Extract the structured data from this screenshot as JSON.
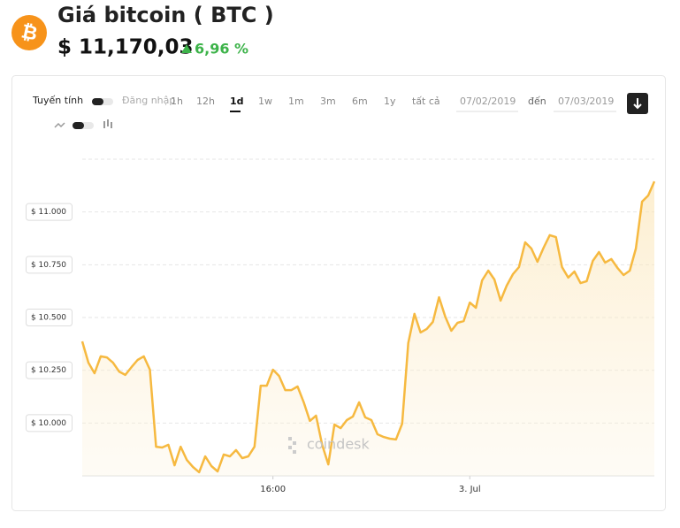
{
  "header": {
    "title": "Giá bitcoin ( BTC )",
    "price": "$ 11,170,03",
    "change": "6,96 %"
  },
  "controls": {
    "scale": "Tuyến tính",
    "login": "Đăng nhập",
    "ranges": [
      "1h",
      "12h",
      "1d",
      "1w",
      "1m",
      "3m",
      "6m",
      "1y",
      "tất cả"
    ],
    "selected": "1d",
    "from": "07/02/2019",
    "to_label": "đến",
    "to": "07/03/2019"
  },
  "watermark": "coindesk",
  "chart_data": {
    "type": "area",
    "color": "#f6b940",
    "x": [
      8.25,
      8.5,
      8.75,
      9,
      9.25,
      9.5,
      9.75,
      10,
      10.25,
      10.5,
      10.75,
      11,
      11.25,
      11.5,
      11.75,
      12,
      12.25,
      12.5,
      12.75,
      13,
      13.25,
      13.5,
      13.75,
      14,
      14.25,
      14.5,
      14.75,
      15,
      15.25,
      15.5,
      15.75,
      16,
      16.25,
      16.5,
      16.75,
      17,
      17.25,
      17.5,
      17.75,
      18,
      18.25,
      18.5,
      18.75,
      19,
      19.25,
      19.5,
      19.75,
      20,
      20.25,
      20.5,
      20.75,
      21,
      21.25,
      21.5,
      21.75,
      22,
      22.25,
      22.5,
      22.75,
      23,
      23.25,
      23.5,
      23.75,
      24,
      24.25,
      24.5,
      24.75,
      25,
      25.25,
      25.5,
      25.75,
      26,
      26.25,
      26.5,
      26.75,
      27,
      27.25,
      27.5,
      27.75,
      28,
      28.25,
      28.5,
      28.75,
      29,
      29.25,
      29.5,
      29.75,
      30,
      30.25,
      30.5,
      30.75,
      31,
      31.25,
      31.5
    ],
    "values": [
      10387,
      10286,
      10236,
      10316,
      10311,
      10286,
      10244,
      10228,
      10265,
      10299,
      10316,
      10253,
      9888,
      9884,
      9897,
      9800,
      9888,
      9825,
      9792,
      9767,
      9842,
      9796,
      9771,
      9851,
      9842,
      9872,
      9834,
      9842,
      9888,
      10177,
      10177,
      10253,
      10223,
      10156,
      10156,
      10173,
      10098,
      10010,
      10035,
      9897,
      9804,
      9993,
      9976,
      10014,
      10031,
      10098,
      10027,
      10014,
      9947,
      9934,
      9926,
      9922,
      9997,
      10379,
      10517,
      10429,
      10446,
      10479,
      10596,
      10504,
      10437,
      10475,
      10483,
      10571,
      10546,
      10676,
      10722,
      10680,
      10580,
      10651,
      10705,
      10739,
      10856,
      10827,
      10764,
      10831,
      10890,
      10881,
      10739,
      10689,
      10718,
      10663,
      10672,
      10768,
      10810,
      10760,
      10777,
      10735,
      10701,
      10722,
      10827,
      11049,
      11078,
      11145
    ],
    "xlim": [
      8.25,
      31.5
    ],
    "xticks": [
      {
        "value": 16,
        "label": "16:00"
      },
      {
        "value": 24,
        "label": "3. Jul"
      }
    ],
    "ylim": [
      9750,
      11250
    ],
    "yticks": [
      {
        "value": 10000,
        "label": "$ 10.000"
      },
      {
        "value": 10250,
        "label": "$ 10.250"
      },
      {
        "value": 10500,
        "label": "$ 10.500"
      },
      {
        "value": 10750,
        "label": "$ 10.750"
      },
      {
        "value": 11000,
        "label": "$ 11.000"
      }
    ],
    "grid": true
  }
}
